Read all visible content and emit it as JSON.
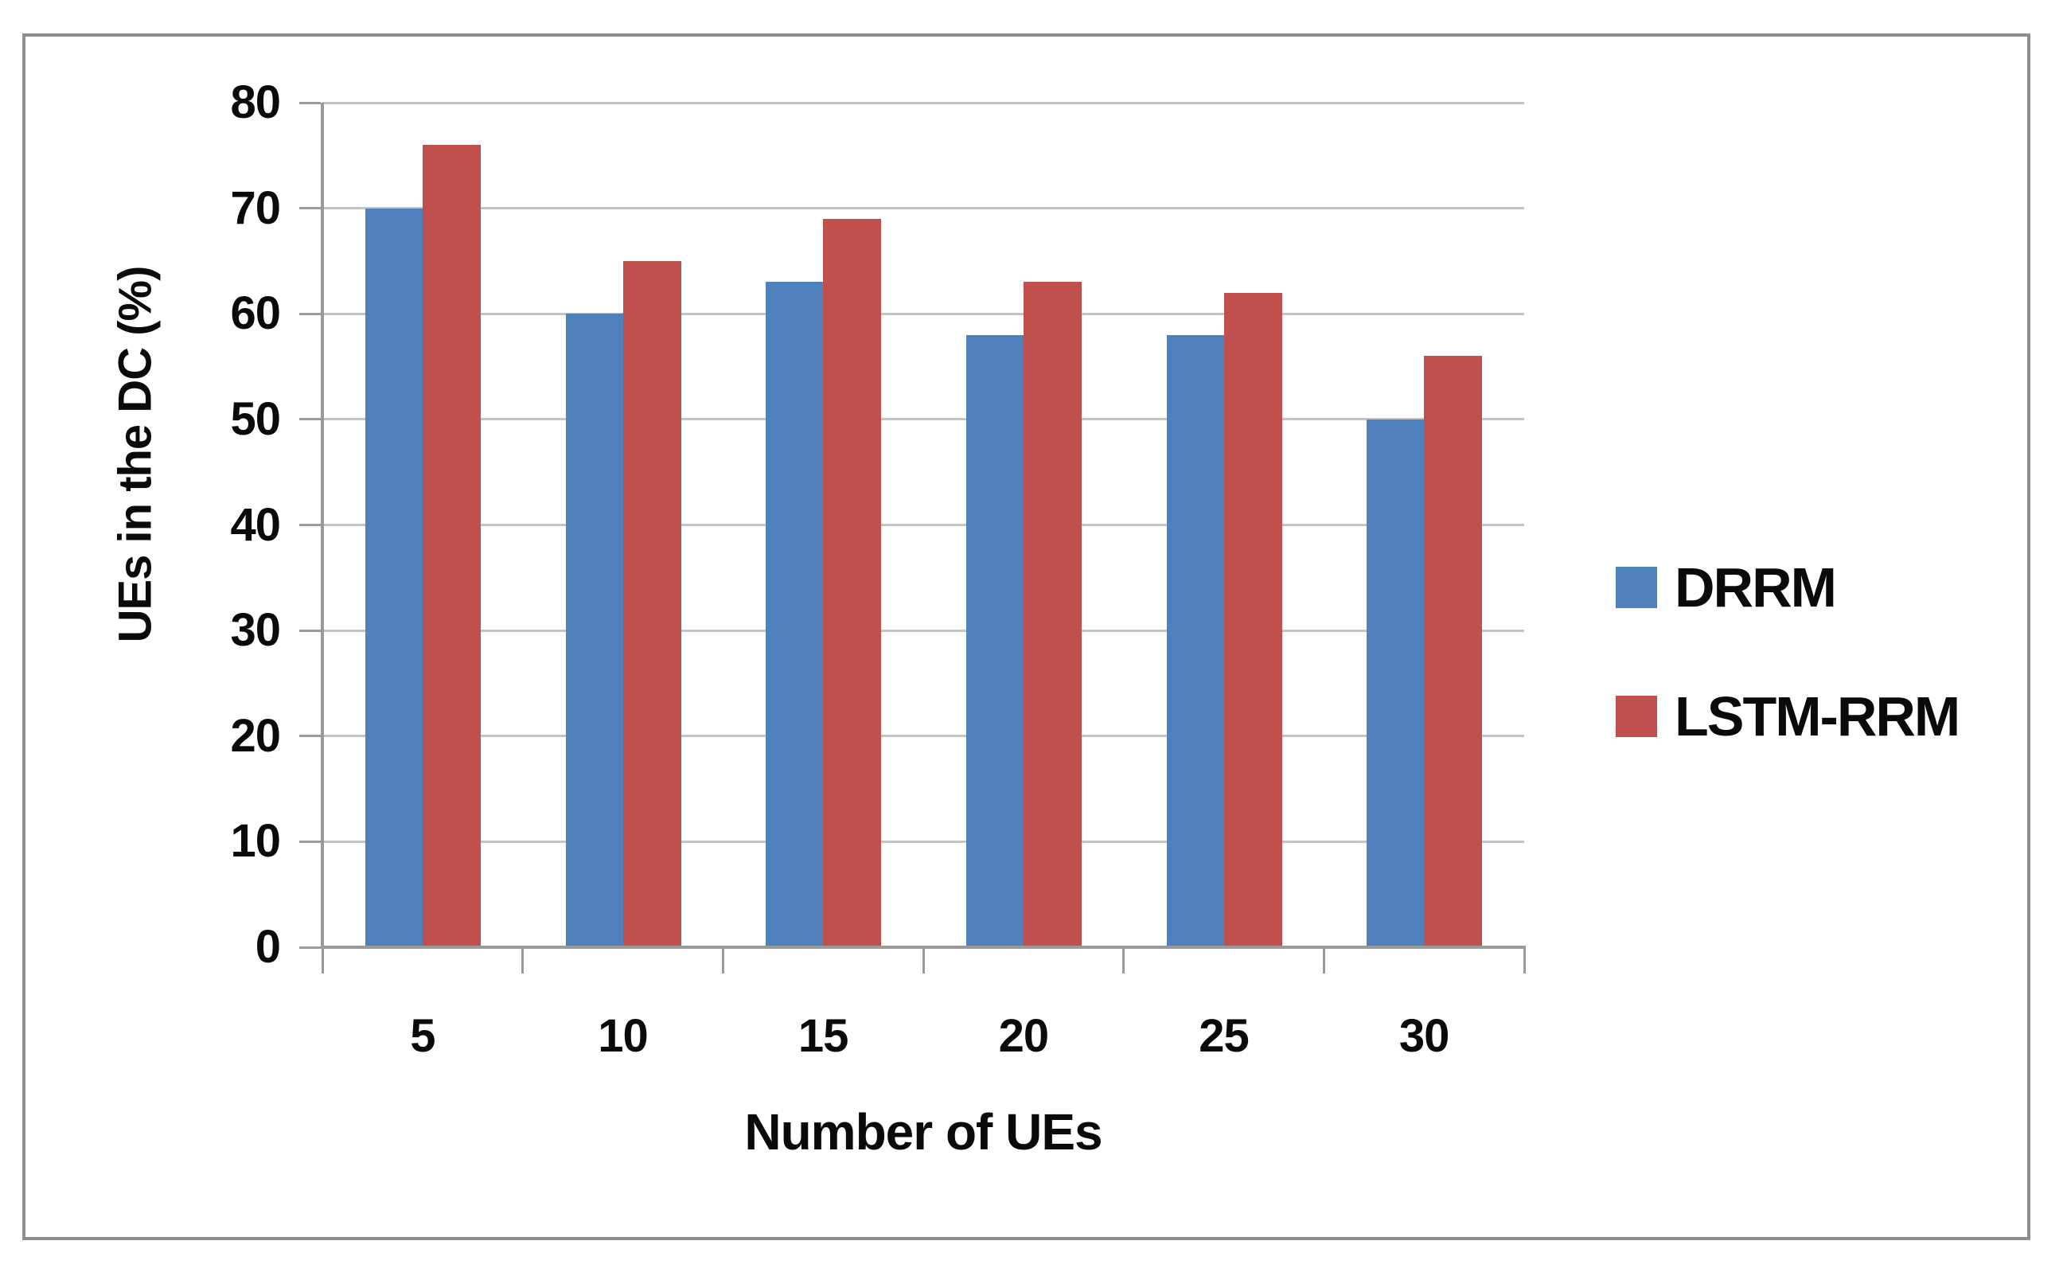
{
  "chart_data": {
    "type": "bar",
    "title": "",
    "categories": [
      "5",
      "10",
      "15",
      "20",
      "25",
      "30"
    ],
    "series": [
      {
        "name": "DRRM",
        "color": "#4F81BD",
        "values": [
          70,
          60,
          63,
          58,
          58,
          50
        ]
      },
      {
        "name": "LSTM-RRM",
        "color": "#C0504D",
        "values": [
          76,
          65,
          69,
          63,
          62,
          56
        ]
      }
    ],
    "xlabel": "Number of UEs",
    "ylabel": "UEs in the DC (%)",
    "ylim": [
      0,
      80
    ],
    "ytick_step": 10,
    "yticks": [
      0,
      10,
      20,
      30,
      40,
      50,
      60,
      70,
      80
    ],
    "grid": "horizontal",
    "legend_position": "right"
  },
  "colors": {
    "gridline": "#C4C4C4",
    "axis": "#9A9A9A",
    "frame_border": "#8F8F8F",
    "text": "#0A0A0A"
  }
}
